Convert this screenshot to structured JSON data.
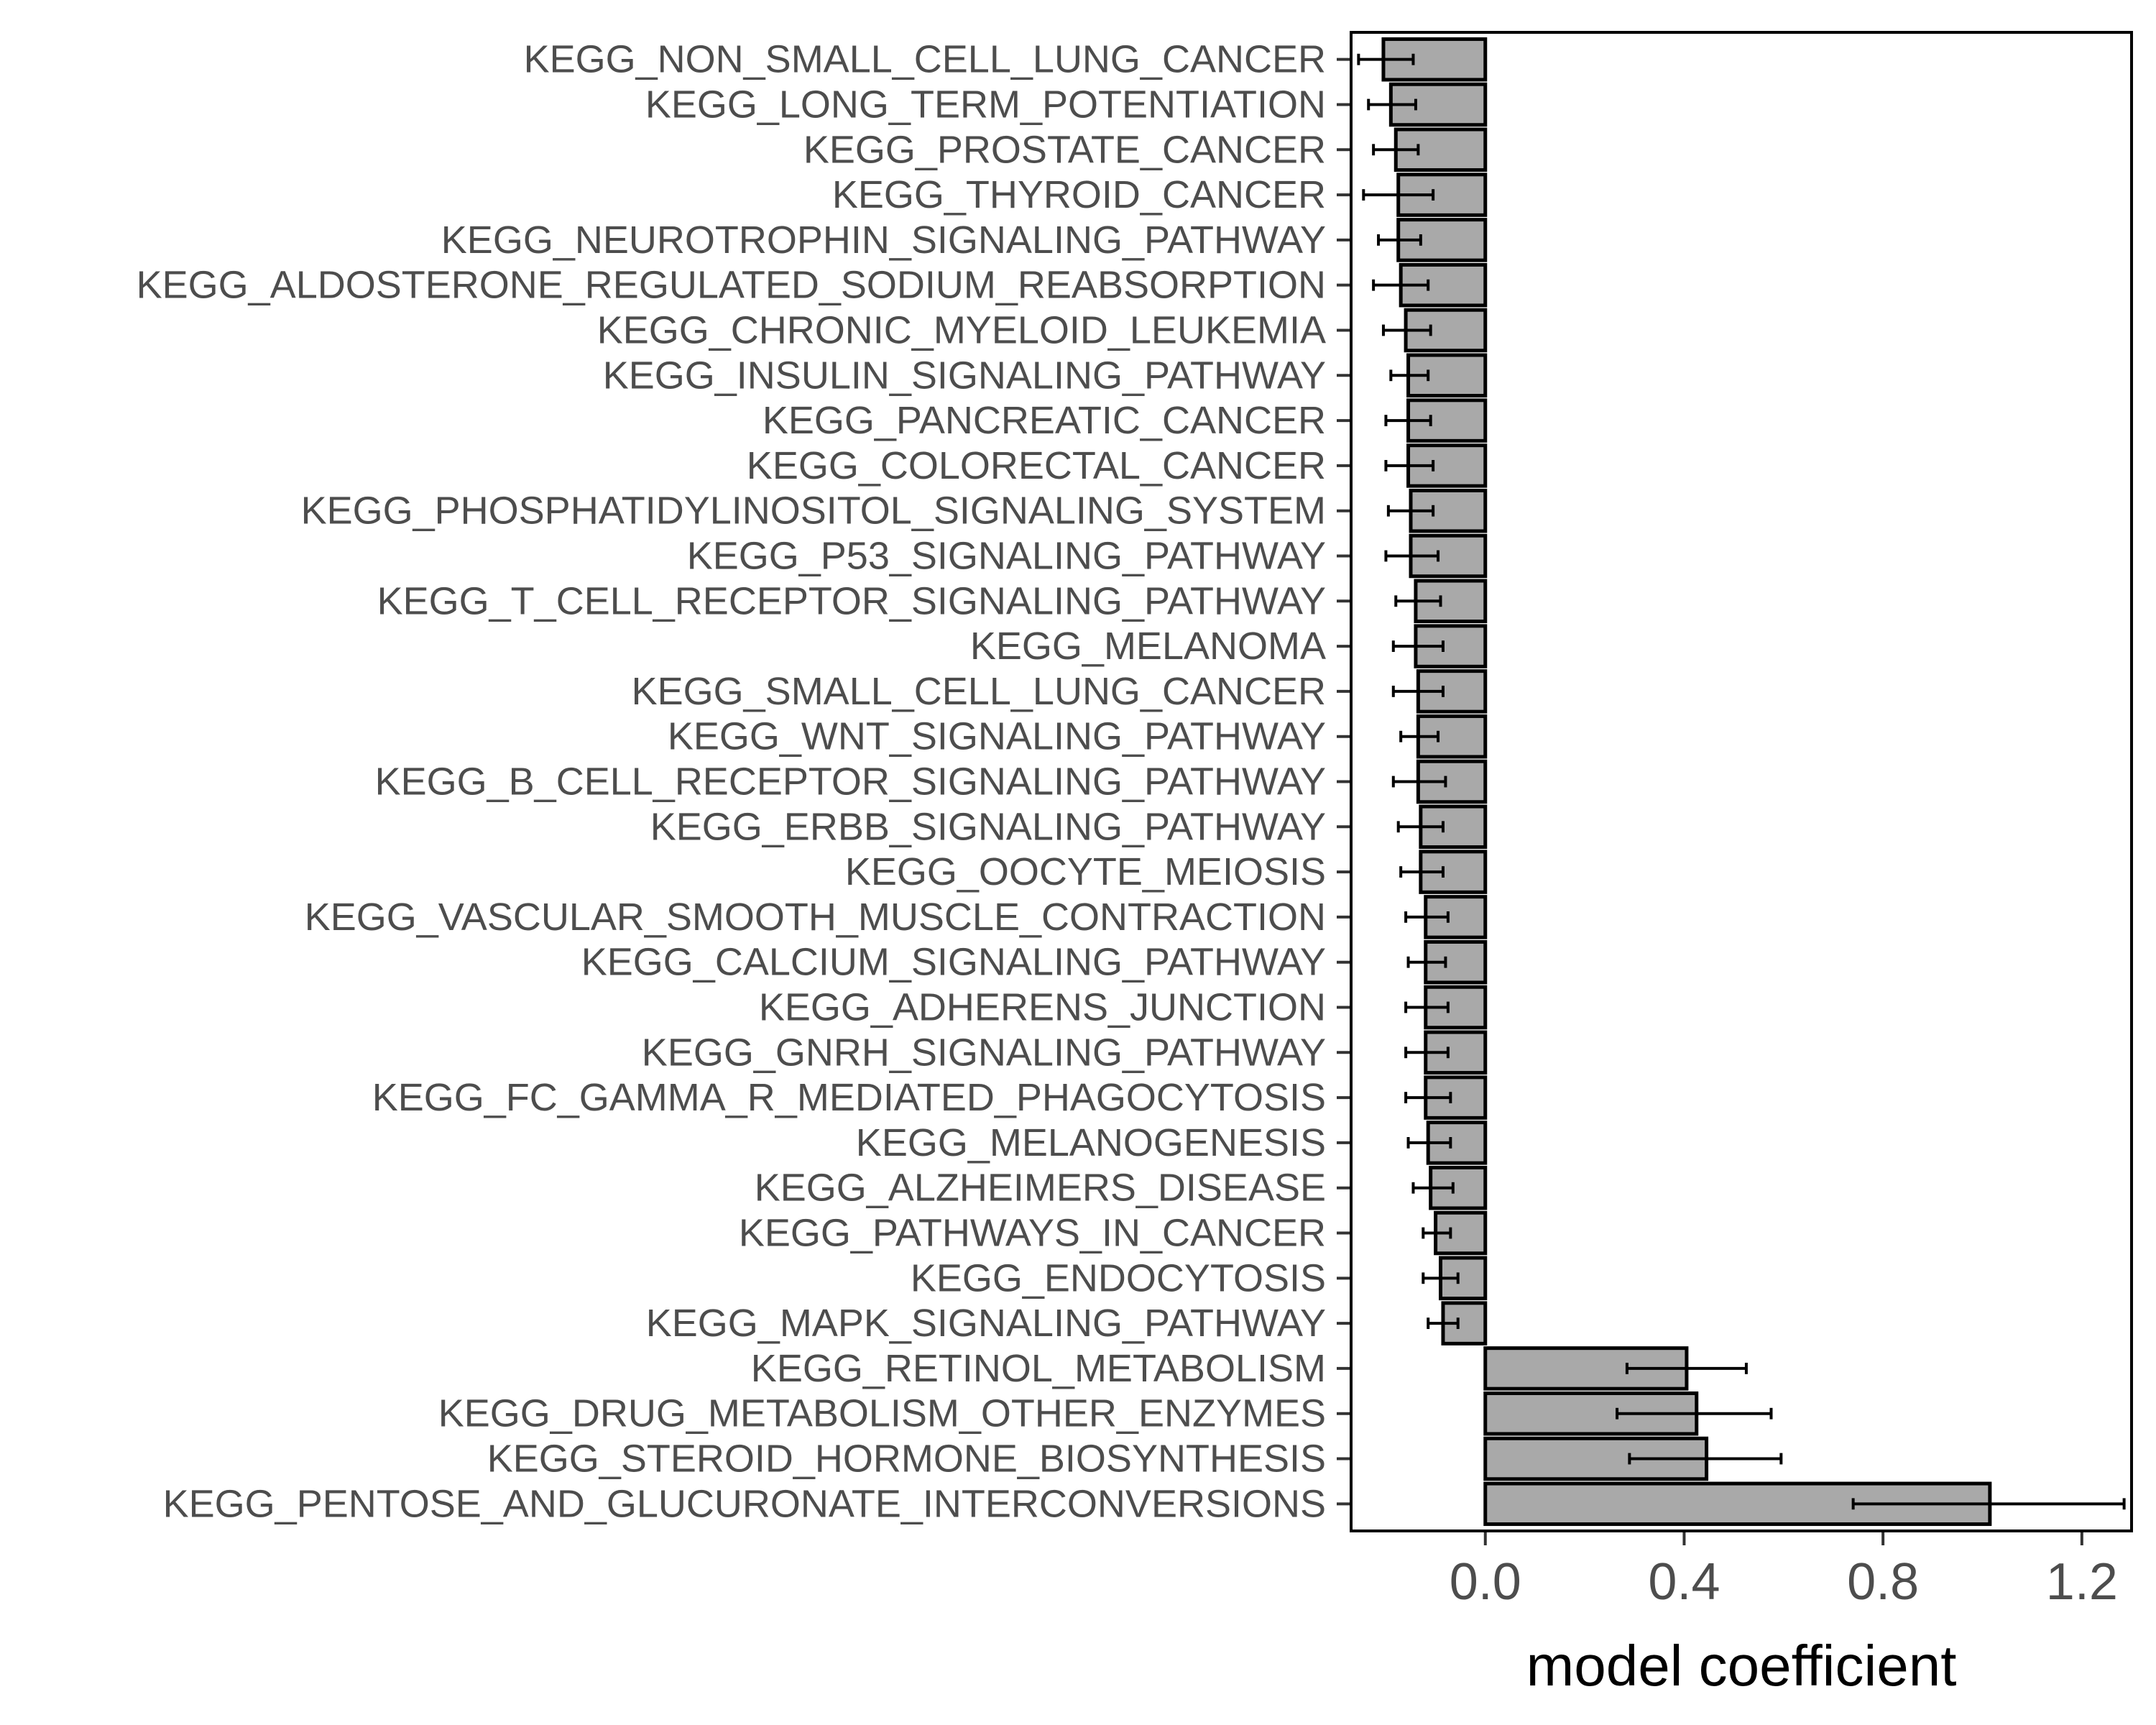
{
  "chart_data": {
    "type": "bar",
    "orientation": "horizontal",
    "title": "",
    "xlabel": "model coefficient",
    "ylabel": "",
    "xlim": [
      -0.27,
      1.3
    ],
    "xticks": [
      0.0,
      0.4,
      0.8,
      1.2
    ],
    "xtick_labels": [
      "0.0",
      "0.4",
      "0.8",
      "1.2"
    ],
    "grid": false,
    "bar_color": "#a9a9a9",
    "edge_color": "#000000",
    "series": [
      {
        "categories": [
          "KEGG_NON_SMALL_CELL_LUNG_CANCER",
          "KEGG_LONG_TERM_POTENTIATION",
          "KEGG_PROSTATE_CANCER",
          "KEGG_THYROID_CANCER",
          "KEGG_NEUROTROPHIN_SIGNALING_PATHWAY",
          "KEGG_ALDOSTERONE_REGULATED_SODIUM_REABSORPTION",
          "KEGG_CHRONIC_MYELOID_LEUKEMIA",
          "KEGG_INSULIN_SIGNALING_PATHWAY",
          "KEGG_PANCREATIC_CANCER",
          "KEGG_COLORECTAL_CANCER",
          "KEGG_PHOSPHATIDYLINOSITOL_SIGNALING_SYSTEM",
          "KEGG_P53_SIGNALING_PATHWAY",
          "KEGG_T_CELL_RECEPTOR_SIGNALING_PATHWAY",
          "KEGG_MELANOMA",
          "KEGG_SMALL_CELL_LUNG_CANCER",
          "KEGG_WNT_SIGNALING_PATHWAY",
          "KEGG_B_CELL_RECEPTOR_SIGNALING_PATHWAY",
          "KEGG_ERBB_SIGNALING_PATHWAY",
          "KEGG_OOCYTE_MEIOSIS",
          "KEGG_VASCULAR_SMOOTH_MUSCLE_CONTRACTION",
          "KEGG_CALCIUM_SIGNALING_PATHWAY",
          "KEGG_ADHERENS_JUNCTION",
          "KEGG_GNRH_SIGNALING_PATHWAY",
          "KEGG_FC_GAMMA_R_MEDIATED_PHAGOCYTOSIS",
          "KEGG_MELANOGENESIS",
          "KEGG_ALZHEIMERS_DISEASE",
          "KEGG_PATHWAYS_IN_CANCER",
          "KEGG_ENDOCYTOSIS",
          "KEGG_MAPK_SIGNALING_PATHWAY",
          "KEGG_RETINOL_METABOLISM",
          "KEGG_DRUG_METABOLISM_OTHER_ENZYMES",
          "KEGG_STEROID_HORMONE_BIOSYNTHESIS",
          "KEGG_PENTOSE_AND_GLUCURONATE_INTERCONVERSIONS"
        ],
        "values": [
          -0.205,
          -0.19,
          -0.18,
          -0.175,
          -0.175,
          -0.17,
          -0.16,
          -0.155,
          -0.155,
          -0.155,
          -0.15,
          -0.15,
          -0.14,
          -0.14,
          -0.135,
          -0.135,
          -0.135,
          -0.13,
          -0.13,
          -0.12,
          -0.12,
          -0.12,
          -0.12,
          -0.12,
          -0.115,
          -0.11,
          -0.1,
          -0.09,
          -0.085,
          0.405,
          0.425,
          0.445,
          1.015
        ],
        "error_low": [
          -0.255,
          -0.235,
          -0.225,
          -0.245,
          -0.215,
          -0.225,
          -0.205,
          -0.19,
          -0.2,
          -0.2,
          -0.195,
          -0.2,
          -0.18,
          -0.185,
          -0.185,
          -0.17,
          -0.185,
          -0.175,
          -0.17,
          -0.16,
          -0.155,
          -0.16,
          -0.16,
          -0.16,
          -0.155,
          -0.145,
          -0.125,
          -0.125,
          -0.115,
          0.285,
          0.265,
          0.29,
          0.74
        ],
        "error_high": [
          -0.145,
          -0.14,
          -0.135,
          -0.105,
          -0.13,
          -0.115,
          -0.11,
          -0.115,
          -0.11,
          -0.105,
          -0.105,
          -0.095,
          -0.09,
          -0.085,
          -0.085,
          -0.095,
          -0.08,
          -0.085,
          -0.085,
          -0.075,
          -0.08,
          -0.075,
          -0.075,
          -0.07,
          -0.07,
          -0.065,
          -0.07,
          -0.055,
          -0.055,
          0.525,
          0.575,
          0.595,
          1.285
        ]
      }
    ]
  }
}
